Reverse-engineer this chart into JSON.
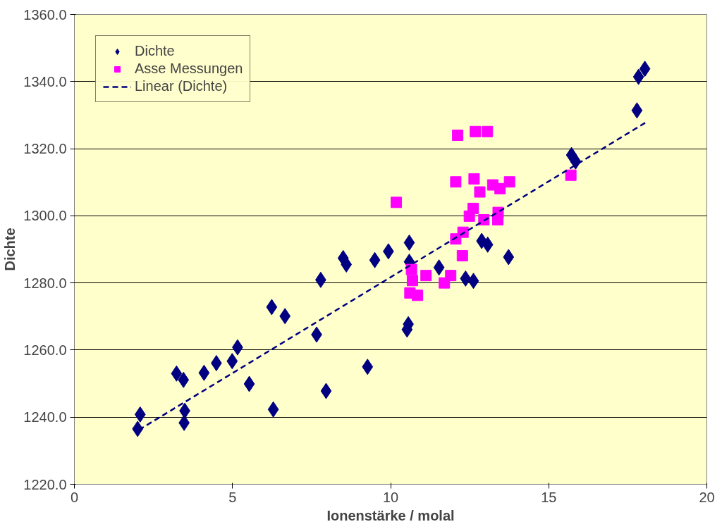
{
  "chart_data": {
    "type": "scatter",
    "xlabel": "Ionenstärke / molal",
    "ylabel": "Dichte",
    "xlim": [
      0,
      20
    ],
    "xticks": [
      0,
      5,
      10,
      15,
      20
    ],
    "ylim": [
      1220,
      1360
    ],
    "yticks": [
      {
        "value": 1220,
        "label": "1220.0"
      },
      {
        "value": 1240,
        "label": "1240.0"
      },
      {
        "value": 1260,
        "label": "1260.0"
      },
      {
        "value": 1280,
        "label": "1280.0"
      },
      {
        "value": 1300,
        "label": "1300.0"
      },
      {
        "value": 1320,
        "label": "1320.0"
      },
      {
        "value": 1340,
        "label": "1340.0"
      },
      {
        "value": 1360,
        "label": "1360.0"
      }
    ],
    "grid": "y",
    "legend": "top left",
    "series": [
      {
        "name": "Dichte",
        "color": "#000080",
        "type": "scatter",
        "marker": "diamond",
        "x": [
          2.08,
          2.0,
          3.23,
          3.45,
          3.49,
          3.47,
          4.1,
          4.49,
          4.99,
          5.16,
          5.53,
          6.24,
          6.66,
          6.29,
          7.66,
          7.79,
          7.96,
          8.5,
          8.6,
          9.5,
          9.93,
          10.59,
          10.59,
          11.53,
          12.37,
          12.62,
          12.88,
          13.07,
          13.73,
          10.52,
          10.56,
          9.27,
          17.84,
          18.04,
          17.79,
          15.72,
          15.85
        ],
        "values": [
          1240.8,
          1236.5,
          1253.0,
          1251.1,
          1241.9,
          1238.3,
          1253.2,
          1256.1,
          1256.7,
          1260.8,
          1249.9,
          1272.8,
          1270.1,
          1242.3,
          1264.6,
          1280.9,
          1247.8,
          1287.4,
          1285.5,
          1286.8,
          1289.4,
          1292.0,
          1286.3,
          1284.6,
          1281.3,
          1280.6,
          1292.5,
          1291.4,
          1287.7,
          1266.1,
          1267.7,
          1255.0,
          1341.4,
          1343.8,
          1331.4,
          1318.1,
          1316.2
        ]
      },
      {
        "name": "Asse Messungen",
        "color": "#ff00ff",
        "type": "scatter",
        "marker": "square",
        "x": [
          12.12,
          12.68,
          13.06,
          12.06,
          12.64,
          12.82,
          13.23,
          13.46,
          13.76,
          10.18,
          12.61,
          12.49,
          12.95,
          13.4,
          13.39,
          12.29,
          12.06,
          12.27,
          10.66,
          11.12,
          10.69,
          11.7,
          11.9,
          10.61,
          10.85,
          15.7
        ],
        "values": [
          1324.0,
          1325.1,
          1325.1,
          1310.1,
          1311.0,
          1307.1,
          1309.2,
          1308.1,
          1310.1,
          1304.0,
          1302.2,
          1299.9,
          1298.8,
          1301.0,
          1298.8,
          1295.1,
          1293.1,
          1288.1,
          1284.0,
          1282.2,
          1280.7,
          1280.0,
          1282.2,
          1277.0,
          1276.3,
          1312.1
        ]
      },
      {
        "name": "Linear (Dichte)",
        "color": "#000080",
        "type": "line",
        "line_style": "dashed",
        "marker": "none",
        "x": [
          2.04,
          18.12
        ],
        "values": [
          1236.2,
          1328.1
        ]
      }
    ]
  }
}
